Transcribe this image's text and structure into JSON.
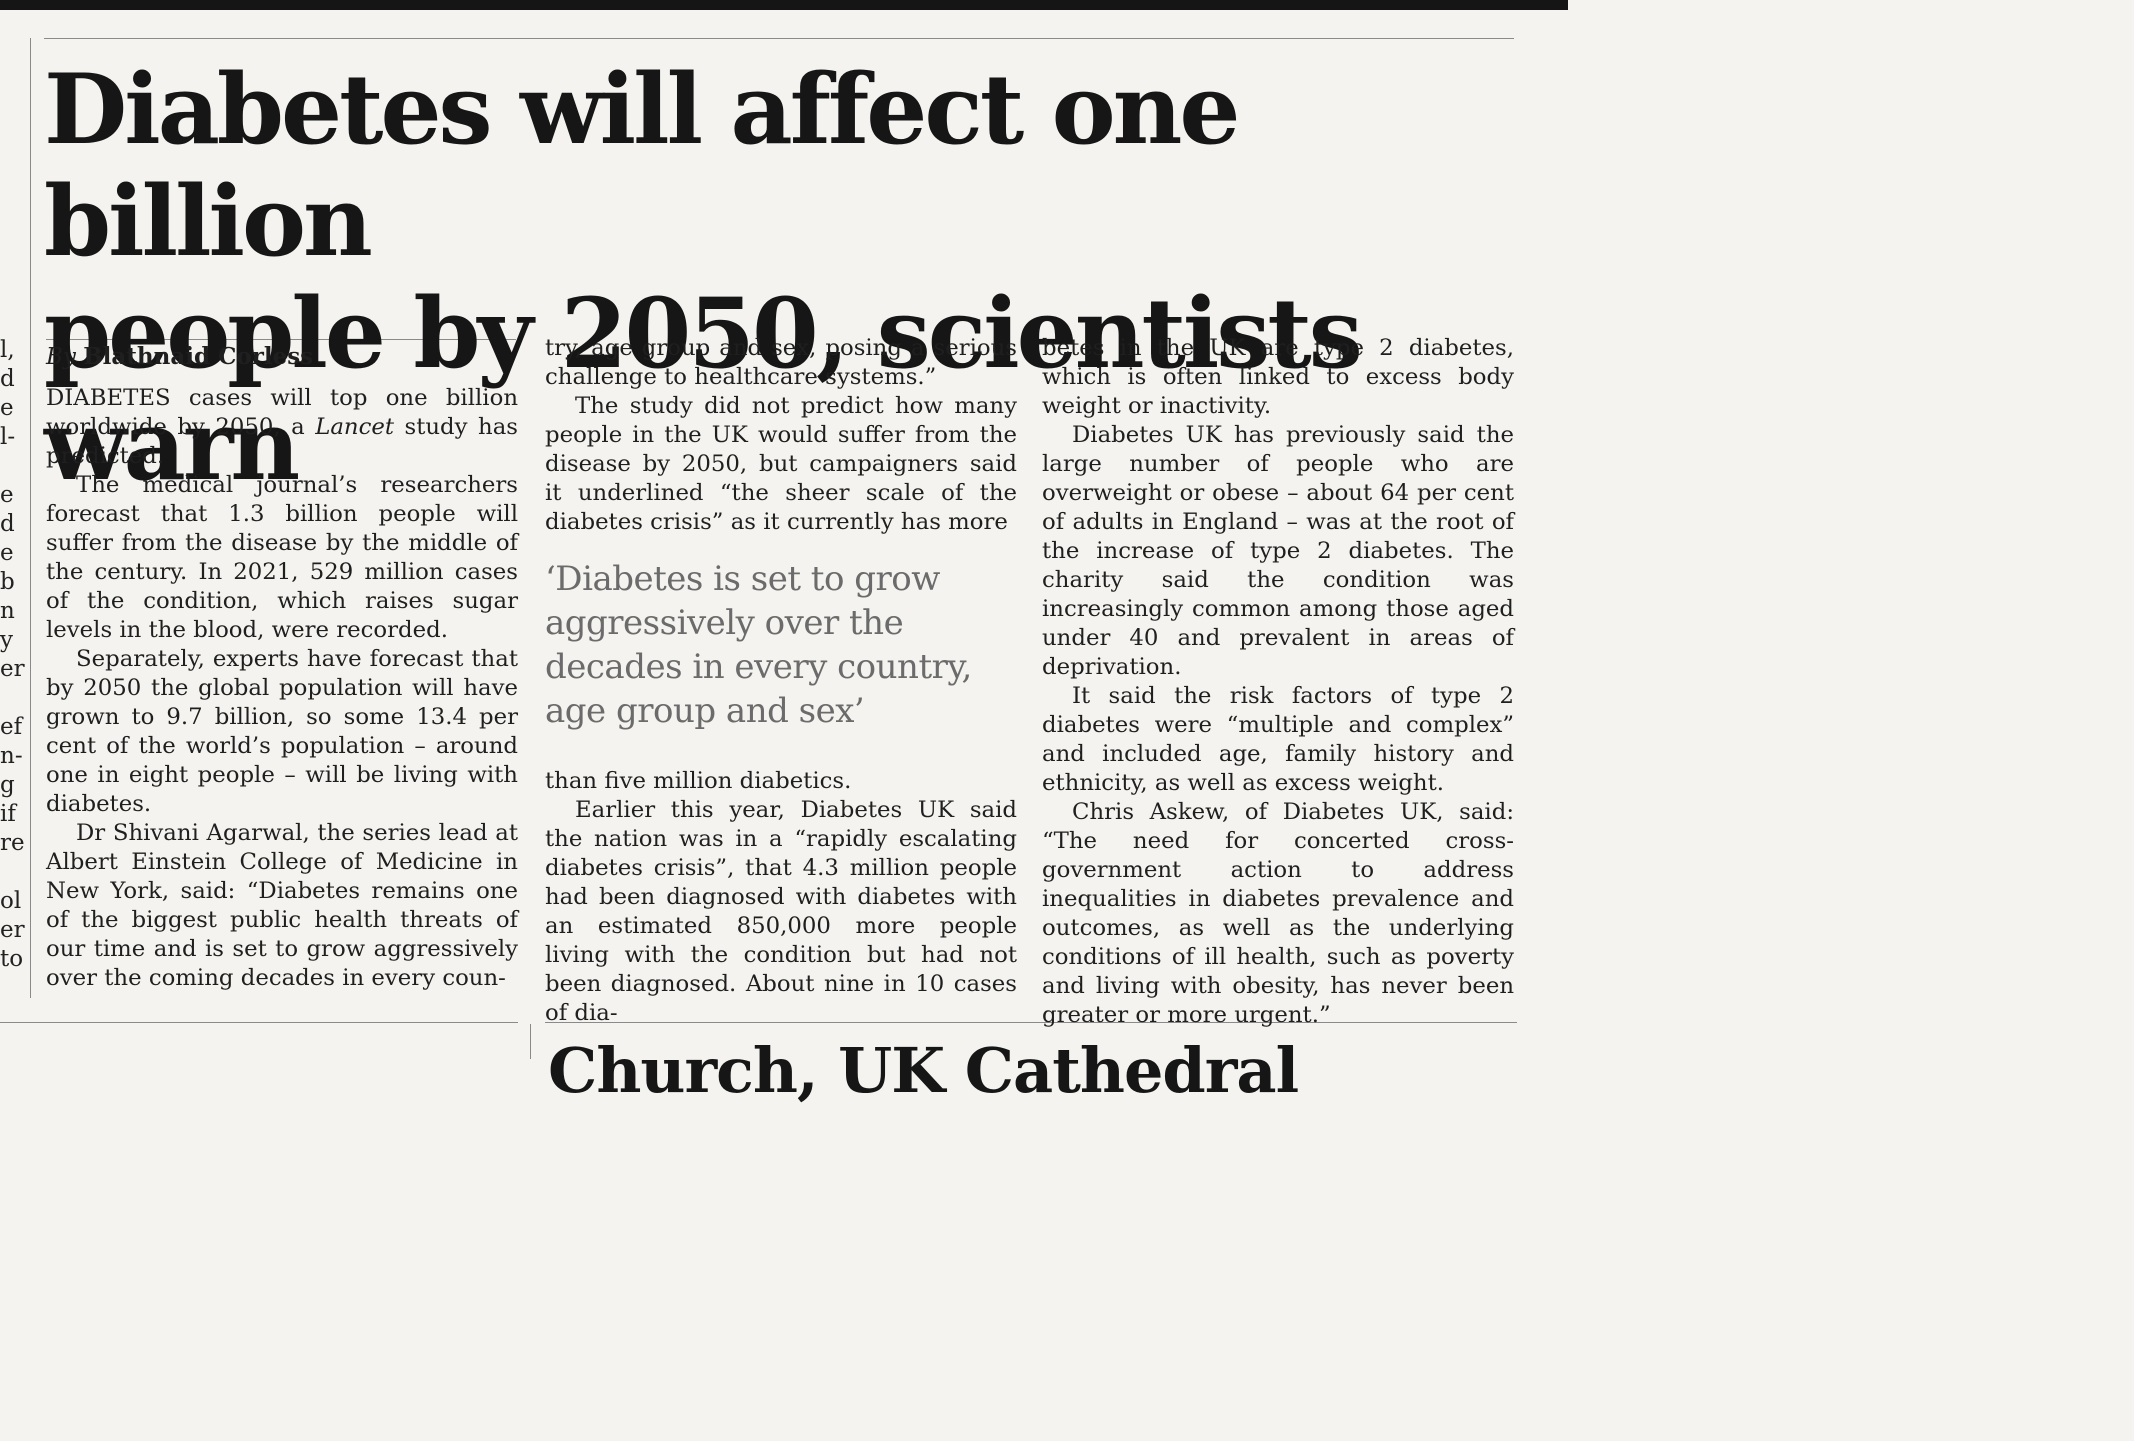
{
  "headline": {
    "line1": "Diabetes will affect one billion",
    "line2": "people by 2050, scientists warn"
  },
  "byline": {
    "by": "By",
    "author": "Blathnaid Corless"
  },
  "left_column_fragments": [
    "l,",
    "d",
    "e",
    "l-",
    "",
    "e",
    "d",
    "e",
    "b",
    "n",
    "y",
    "er",
    "",
    "ef",
    "n-",
    "g",
    "if",
    "re",
    "",
    "ol",
    "er",
    "to"
  ],
  "column1": {
    "p1_before": "DIABETES cases will top one billion worldwide by 2050, a ",
    "p1_em": "Lancet",
    "p1_after": " study has predicted.",
    "p2": "The medical journal’s researchers forecast that 1.3 billion people will suffer from the disease by the middle of the century. In 2021, 529 million cases of the condition, which raises sugar levels in the blood, were recorded.",
    "p3": "Separately, experts have forecast that by 2050 the global population will have grown to 9.7 billion, so some 13.4 per cent of the world’s population – around one in eight people – will be living with diabetes.",
    "p4": "Dr Shivani Agarwal, the series lead at Albert Einstein College of Medicine in New York, said: “Diabetes remains one of the biggest public health threats of our time and is set to grow aggressively over the coming decades in every coun-"
  },
  "column2": {
    "p1": "try, age group and sex, posing a serious challenge to healthcare systems.”",
    "p2": "The study did not predict how many people in the UK would suffer from the disease by 2050, but campaigners said it underlined “the sheer scale of the diabetes crisis” as it currently has more",
    "pullquote": "‘Diabetes is set to grow aggressively over the decades in every country, age group and sex’",
    "p3": "than five million diabetics.",
    "p4": "Earlier this year, Diabetes UK said the nation was in a “rapidly escalating diabetes crisis”, that 4.3 million people had been diagnosed with diabetes with an estimated 850,000 more people living with the condition but had not been diagnosed. About nine in 10 cases of dia-"
  },
  "column3": {
    "p1": "betes in the UK are type 2 diabetes, which is often linked to excess body weight or inactivity.",
    "p2": "Diabetes UK has previously said the large number of people who are overweight or obese – about 64 per cent of adults in England – was at the root of the increase of type 2 diabetes. The charity said the condition was increasingly common among those aged under 40 and prevalent in areas of deprivation.",
    "p3": "It said the risk factors of type 2 diabetes were “multiple and complex” and included age, family history and ethnicity, as well as excess weight.",
    "p4": "Chris Askew, of Diabetes UK, said: “The need for concerted cross-government action to address inequalities in diabetes prevalence and outcomes, as well as the underlying conditions of ill health, such as poverty and living with obesity, has never been greater or more urgent.”"
  },
  "next_article_headline": "Church, UK Cathedral"
}
